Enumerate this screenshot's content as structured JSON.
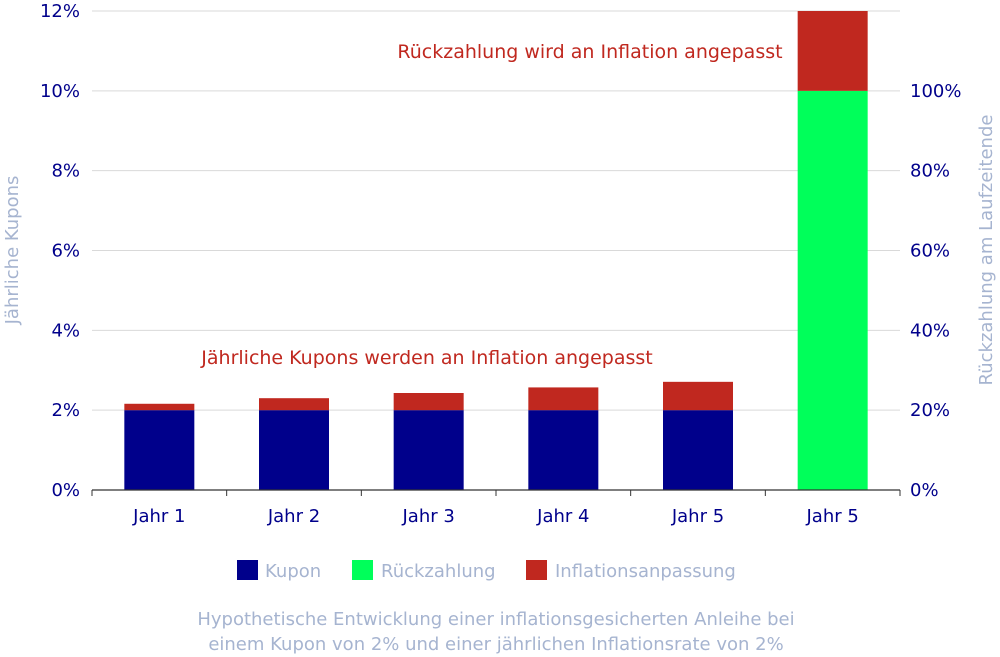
{
  "chart_data": {
    "type": "bar",
    "stacked": true,
    "categories": [
      "Jahr 1",
      "Jahr 2",
      "Jahr 3",
      "Jahr 4",
      "Jahr 5",
      "Jahr 5"
    ],
    "series": [
      {
        "name": "Kupon",
        "color": "#00008b",
        "axis": "left",
        "values": [
          2.0,
          2.0,
          2.0,
          2.0,
          2.0,
          0
        ]
      },
      {
        "name": "Rückzahlung",
        "color": "#00ff5a",
        "axis": "right",
        "values": [
          0,
          0,
          0,
          0,
          0,
          100
        ]
      },
      {
        "name": "Inflationsanpassung",
        "color": "#c0281f",
        "axis": "mixed",
        "values": [
          0.16,
          0.3,
          0.43,
          0.57,
          0.71,
          20
        ]
      }
    ],
    "y_left": {
      "label": "Jährliche Kupons",
      "min": 0,
      "max": 12,
      "ticks": [
        "0%",
        "2%",
        "4%",
        "6%",
        "8%",
        "10%",
        "12%"
      ]
    },
    "y_right": {
      "label": "Rückzahlung am Laufzeitende",
      "min": 0,
      "max": 120,
      "ticks": [
        "0%",
        "20%",
        "40%",
        "60%",
        "80%",
        "100%"
      ]
    },
    "annotations": [
      "Rückzahlung wird an Inflation angepasst",
      "Jährliche Kupons werden an Inflation angepasst"
    ],
    "legend": [
      "Kupon",
      "Rückzahlung",
      "Inflationsanpassung"
    ],
    "caption_lines": [
      "Hypothetische Entwicklung einer inflationsgesicherten Anleihe bei",
      "einem Kupon von 2% und einer jährlichen Inflationsrate von 2%"
    ],
    "grid": true,
    "legend_position": "bottom"
  }
}
